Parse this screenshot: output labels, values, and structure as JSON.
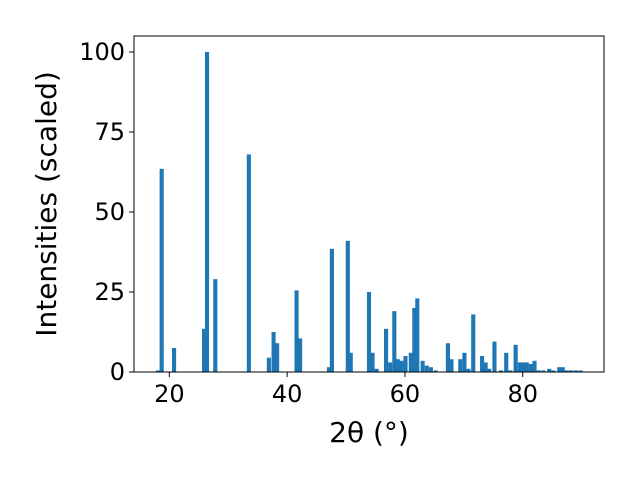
{
  "chart_data": {
    "type": "bar",
    "title": "",
    "xlabel": "2θ (°)",
    "ylabel": "Intensities (scaled)",
    "xlim": [
      14.0,
      93.8
    ],
    "ylim": [
      0,
      105
    ],
    "xticks": [
      20,
      40,
      60,
      80
    ],
    "yticks": [
      0,
      25,
      50,
      75,
      100
    ],
    "grid": false,
    "bar_color": "#1f77b4",
    "bar_width": 0.7,
    "series": [
      {
        "x": [
          18.1,
          18.7,
          20.8,
          25.9,
          26.4,
          27.8,
          33.5,
          36.9,
          37.7,
          38.3,
          41.6,
          42.2,
          47.1,
          47.6,
          50.3,
          50.8,
          53.9,
          54.5,
          55.2,
          56.8,
          57.5,
          58.2,
          58.8,
          59.4,
          60.1,
          61.0,
          61.6,
          62.1,
          63.0,
          63.7,
          64.4,
          65.2,
          67.3,
          67.9,
          69.4,
          70.1,
          70.8,
          71.6,
          73.1,
          73.7,
          74.3,
          75.2,
          76.3,
          77.2,
          77.9,
          78.8,
          79.5,
          80.1,
          80.7,
          81.4,
          82.0,
          82.7,
          83.5,
          84.5,
          85.2,
          86.2,
          86.8,
          87.5,
          88.2,
          89.0,
          89.8
        ],
        "y": [
          0.5,
          63.5,
          7.5,
          13.5,
          100,
          29,
          68,
          4.5,
          12.5,
          9,
          25.5,
          10.5,
          1.5,
          38.5,
          41,
          6,
          25,
          6,
          1,
          13.5,
          3,
          19,
          4,
          3.5,
          5,
          6,
          20,
          23,
          3.5,
          2,
          1.5,
          0.5,
          9,
          4,
          4,
          6,
          1,
          18,
          5,
          3,
          1,
          9.5,
          0.5,
          6,
          0.5,
          8.5,
          3,
          3,
          3,
          2.5,
          3.5,
          0.5,
          0.5,
          1,
          0.5,
          1.5,
          1.5,
          0.5,
          0.5,
          0.5,
          0.5
        ]
      }
    ]
  }
}
